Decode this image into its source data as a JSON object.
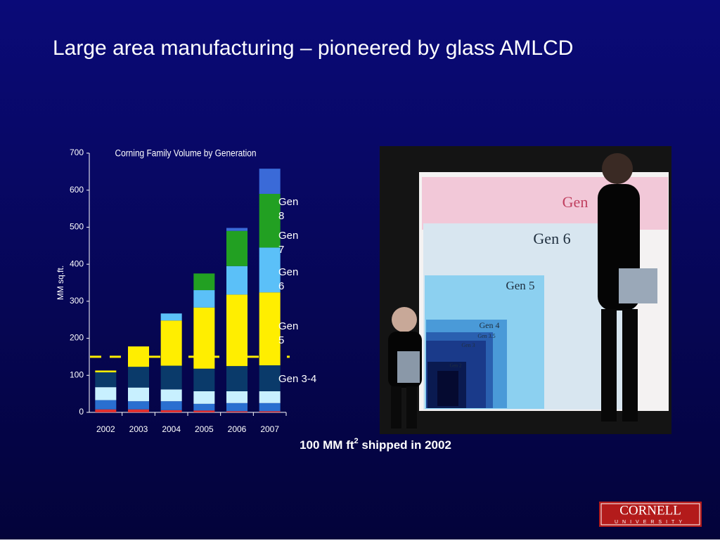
{
  "slide_title": "Large area manufacturing – pioneered by glass AMLCD",
  "chart_data": {
    "type": "stacked_bar",
    "title": "Corning Family Volume by Generation",
    "ylabel": "MM sq.ft.",
    "categories": [
      "2002",
      "2003",
      "2004",
      "2005",
      "2006",
      "2007"
    ],
    "series": [
      {
        "color": "#e03030",
        "values": [
          8,
          8,
          6,
          5,
          3,
          3
        ]
      },
      {
        "color": "#2a6fd0",
        "values": [
          25,
          22,
          24,
          18,
          22,
          22
        ]
      },
      {
        "color": "#c8f0ff",
        "values": [
          35,
          37,
          32,
          34,
          32,
          32
        ]
      },
      {
        "name": "Gen 3-4",
        "color": "#0a3a6a",
        "values": [
          40,
          56,
          64,
          61,
          68,
          70
        ]
      },
      {
        "name": "Gen 5",
        "color": "#ffee00",
        "values": [
          5,
          55,
          122,
          165,
          193,
          197
        ]
      },
      {
        "name": "Gen 6",
        "color": "#5bc0f8",
        "values": [
          0,
          0,
          19,
          47,
          77,
          121
        ]
      },
      {
        "name": "Gen 7",
        "color": "#22a022",
        "values": [
          0,
          0,
          0,
          45,
          95,
          145
        ]
      },
      {
        "name": "Gen 8",
        "color": "#3a6ad8",
        "values": [
          0,
          0,
          0,
          0,
          8,
          68
        ]
      }
    ],
    "ylim": [
      0,
      700
    ],
    "yticks": [
      0,
      100,
      200,
      300,
      400,
      500,
      600,
      700
    ],
    "reference_line": {
      "value": 150,
      "color": "#ffee00"
    }
  },
  "annotation": {
    "text": "100 MM ft",
    "superscript": "2",
    "rest": " shipped in 2002"
  },
  "photo_labels": [
    "Gen",
    "Gen 6",
    "Gen 5",
    "Gen 4",
    "Gen 3.5",
    "Gen 3",
    "Gen 2"
  ],
  "logo": {
    "name": "CORNELL",
    "sub": "UNIVERSITY"
  }
}
